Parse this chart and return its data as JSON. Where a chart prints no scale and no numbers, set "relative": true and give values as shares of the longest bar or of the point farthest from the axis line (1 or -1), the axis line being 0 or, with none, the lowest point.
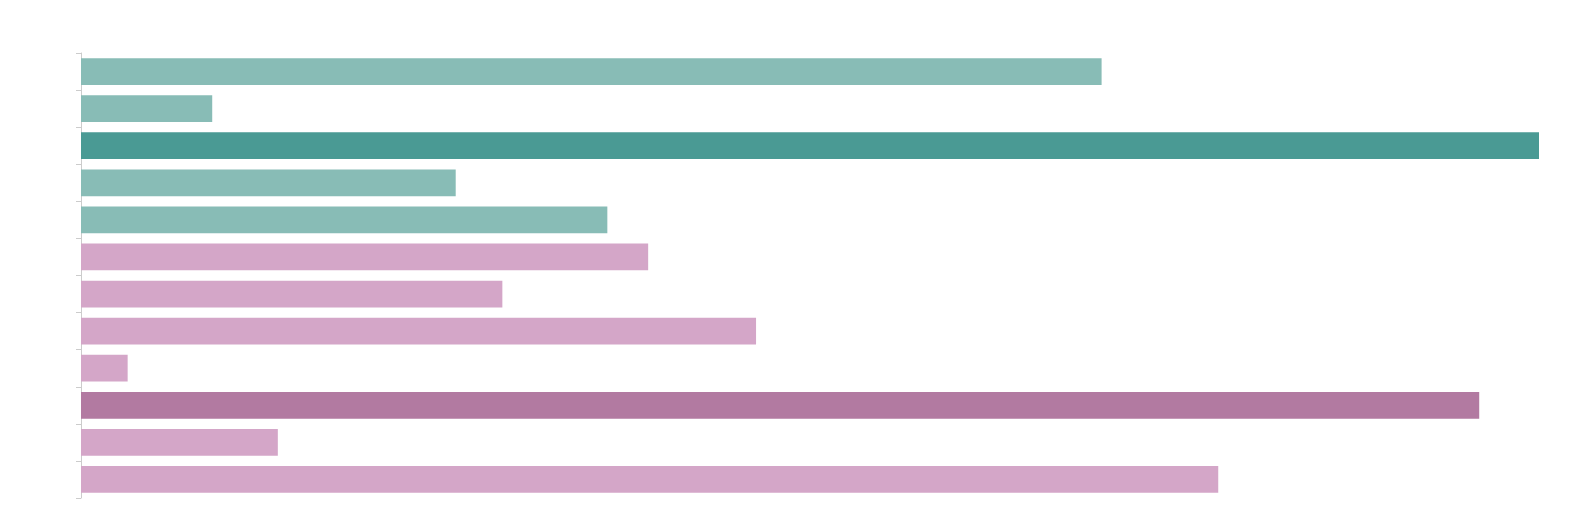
{
  "chart_data": {
    "type": "bar",
    "orientation": "horizontal",
    "relative": true,
    "categories": [
      null,
      null,
      null,
      null,
      null,
      null,
      null,
      null,
      null,
      null,
      null,
      null
    ],
    "values": [
      0.7,
      0.09,
      1,
      0.257,
      0.361,
      0.389,
      0.289,
      0.463,
      0.032,
      0.959,
      0.135,
      0.78
    ],
    "colors": [
      "#88bcb6",
      "#88bcb6",
      "#4a9a94",
      "#88bcb6",
      "#88bcb6",
      "#d4a6c8",
      "#d4a6c8",
      "#d4a6c8",
      "#d4a6c8",
      "#b27aa1",
      "#d4a6c8",
      "#d4a6c8"
    ],
    "data_labels": false
  }
}
